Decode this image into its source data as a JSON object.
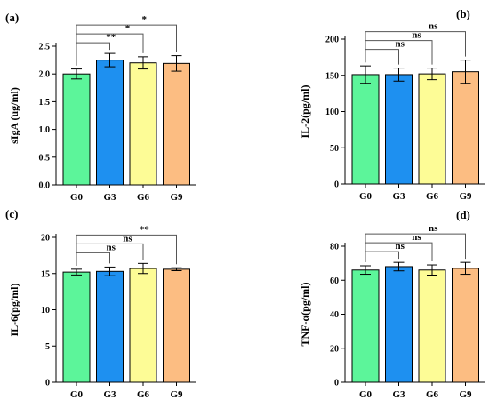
{
  "chart_data": [
    {
      "type": "bar",
      "panel_label": "(a)",
      "ylabel": "sIgA (ug/ml)",
      "categories": [
        "G0",
        "G3",
        "G6",
        "G9"
      ],
      "values": [
        2.0,
        2.25,
        2.2,
        2.19
      ],
      "errors": [
        0.09,
        0.12,
        0.11,
        0.14
      ],
      "ylim": [
        0.0,
        2.5
      ],
      "yticks": [
        "0.0",
        "0.5",
        "1.0",
        "1.5",
        "2.0",
        "2.5"
      ],
      "comparisons": [
        {
          "from": "G0",
          "to": "G3",
          "label": "**"
        },
        {
          "from": "G0",
          "to": "G6",
          "label": "*"
        },
        {
          "from": "G0",
          "to": "G9",
          "label": "*"
        }
      ]
    },
    {
      "type": "bar",
      "panel_label": "(b)",
      "ylabel": "IL-2(pg/ml)",
      "categories": [
        "G0",
        "G3",
        "G6",
        "G9"
      ],
      "values": [
        151,
        151,
        152,
        155
      ],
      "errors": [
        12,
        9,
        8,
        16
      ],
      "ylim": [
        0,
        200
      ],
      "yticks": [
        "0",
        "50",
        "100",
        "150",
        "200"
      ],
      "comparisons": [
        {
          "from": "G0",
          "to": "G3",
          "label": "ns"
        },
        {
          "from": "G0",
          "to": "G6",
          "label": "ns"
        },
        {
          "from": "G0",
          "to": "G9",
          "label": "ns"
        }
      ]
    },
    {
      "type": "bar",
      "panel_label": "(c)",
      "ylabel": "IL-6(pg/ml)",
      "categories": [
        "G0",
        "G3",
        "G6",
        "G9"
      ],
      "values": [
        15.2,
        15.3,
        15.7,
        15.6
      ],
      "errors": [
        0.4,
        0.6,
        0.7,
        0.2
      ],
      "ylim": [
        0,
        20
      ],
      "yticks": [
        "0",
        "5",
        "10",
        "15",
        "20"
      ],
      "comparisons": [
        {
          "from": "G0",
          "to": "G3",
          "label": "ns"
        },
        {
          "from": "G0",
          "to": "G6",
          "label": "ns"
        },
        {
          "from": "G0",
          "to": "G9",
          "label": "**"
        }
      ]
    },
    {
      "type": "bar",
      "panel_label": "(d)",
      "ylabel": "TNF-α(pg/ml)",
      "categories": [
        "G0",
        "G3",
        "G6",
        "G9"
      ],
      "values": [
        66,
        68,
        66,
        67
      ],
      "errors": [
        2.5,
        2.5,
        3,
        3.5
      ],
      "ylim": [
        0,
        80
      ],
      "yticks": [
        "0",
        "20",
        "40",
        "60",
        "80"
      ],
      "comparisons": [
        {
          "from": "G0",
          "to": "G3",
          "label": "ns"
        },
        {
          "from": "G0",
          "to": "G6",
          "label": "ns"
        },
        {
          "from": "G0",
          "to": "G9",
          "label": "ns"
        }
      ]
    }
  ],
  "colors": {
    "G0": "#5cf59a",
    "G3": "#1e90f0",
    "G6": "#fdfc96",
    "G9": "#fcbd82",
    "outline": "#000000"
  }
}
